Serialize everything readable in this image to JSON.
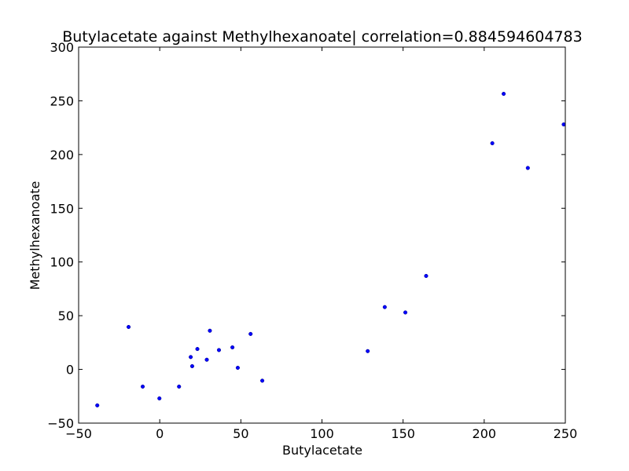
{
  "chart_data": {
    "type": "scatter",
    "title": "Butylacetate against Methylhexanoate| correlation=0.884594604783",
    "xlabel": "Butylacetate",
    "ylabel": "Methylhexanoate",
    "xlim": [
      -50,
      250
    ],
    "ylim": [
      -50,
      300
    ],
    "xticks": [
      -50,
      0,
      50,
      100,
      150,
      200,
      250
    ],
    "yticks": [
      -50,
      0,
      50,
      100,
      150,
      200,
      250,
      300
    ],
    "xtick_labels": [
      "−50",
      "0",
      "50",
      "100",
      "150",
      "200",
      "250"
    ],
    "ytick_labels": [
      "−50",
      "0",
      "50",
      "100",
      "150",
      "200",
      "250",
      "300"
    ],
    "grid": false,
    "marker_color": "#0000ff",
    "series": [
      {
        "x": [
          -38.5,
          -19.2,
          -10.5,
          -0.2,
          11.9,
          19.1,
          20.0,
          23.2,
          29.0,
          30.9,
          36.5,
          44.8,
          48.1,
          56.0,
          63.2,
          128.2,
          138.7,
          151.4,
          164.2,
          205.0,
          212.0,
          226.9,
          249.0
        ],
        "y": [
          -33.5,
          39.5,
          -16.0,
          -27.0,
          -16.0,
          11.5,
          3.0,
          19.0,
          9.0,
          36.0,
          18.0,
          20.5,
          1.5,
          33.0,
          -10.5,
          17.0,
          58.0,
          53.0,
          87.0,
          210.5,
          256.5,
          187.5,
          228.0
        ]
      }
    ]
  }
}
